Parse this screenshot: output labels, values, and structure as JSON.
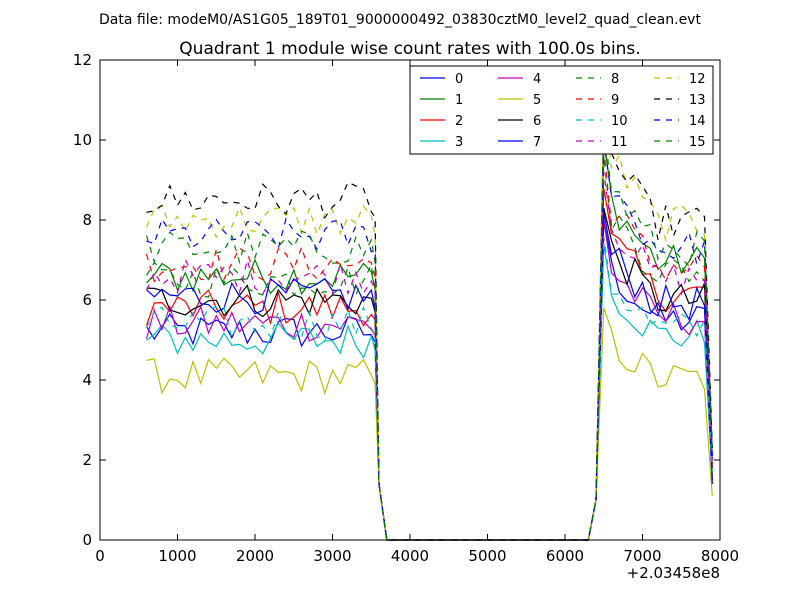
{
  "header": {
    "data_file": "Data file: modeM0/AS1G05_189T01_9000000492_03830cztM0_level2_quad_clean.evt"
  },
  "chart_data": {
    "type": "line",
    "title": "Quadrant 1 module wise count rates with 100.0s bins.",
    "xlabel": "",
    "ylabel": "",
    "xlim": [
      0,
      8000
    ],
    "ylim": [
      0,
      12
    ],
    "x_ticks": [
      0,
      1000,
      2000,
      3000,
      4000,
      5000,
      6000,
      7000,
      8000
    ],
    "y_ticks": [
      0,
      2,
      4,
      6,
      8,
      10,
      12
    ],
    "x_offset_label": "+2.03458e8",
    "grid": false,
    "legend_position": "top-right",
    "legend_columns": 4,
    "segments": {
      "first_start": 600,
      "first_end": 3500,
      "fall_end": 3700,
      "second_start": 6500,
      "second_end": 7850,
      "rise_start": 6300,
      "final_x": 7900,
      "step": 100
    },
    "series": [
      {
        "name": "0",
        "color": "#0000ff",
        "style": "solid",
        "first_mean": 5.2,
        "second_mean": 5.8,
        "peak": 8.0,
        "final": 1.8
      },
      {
        "name": "1",
        "color": "#008000",
        "style": "solid",
        "first_mean": 6.6,
        "second_mean": 7.4,
        "peak": 10.0,
        "final": 2.0
      },
      {
        "name": "2",
        "color": "#ff0000",
        "style": "solid",
        "first_mean": 5.8,
        "second_mean": 6.6,
        "peak": 8.8,
        "final": 1.9
      },
      {
        "name": "3",
        "color": "#00bfbf",
        "style": "solid",
        "first_mean": 5.0,
        "second_mean": 5.4,
        "peak": 7.4,
        "final": 1.6
      },
      {
        "name": "4",
        "color": "#bf00bf",
        "style": "solid",
        "first_mean": 5.4,
        "second_mean": 5.9,
        "peak": 8.0,
        "final": 1.7
      },
      {
        "name": "5",
        "color": "#bfbf00",
        "style": "solid",
        "first_mean": 4.1,
        "second_mean": 4.3,
        "peak": 5.8,
        "final": 1.1
      },
      {
        "name": "6",
        "color": "#000000",
        "style": "solid",
        "first_mean": 6.0,
        "second_mean": 6.6,
        "peak": 8.3,
        "final": 1.5
      },
      {
        "name": "7",
        "color": "#0000ff",
        "style": "solid",
        "first_mean": 6.1,
        "second_mean": 6.5,
        "peak": 8.2,
        "final": 1.4
      },
      {
        "name": "8",
        "color": "#008000",
        "style": "dashed",
        "first_mean": 6.5,
        "second_mean": 7.2,
        "peak": 9.6,
        "final": 2.1
      },
      {
        "name": "9",
        "color": "#ff0000",
        "style": "dashed",
        "first_mean": 6.9,
        "second_mean": 7.3,
        "peak": 9.8,
        "final": 2.0
      },
      {
        "name": "10",
        "color": "#00bfbf",
        "style": "dashed",
        "first_mean": 5.4,
        "second_mean": 5.6,
        "peak": 7.6,
        "final": 1.7
      },
      {
        "name": "11",
        "color": "#bf00bf",
        "style": "dashed",
        "first_mean": 6.6,
        "second_mean": 7.1,
        "peak": 9.2,
        "final": 2.0
      },
      {
        "name": "12",
        "color": "#bfbf00",
        "style": "dashed",
        "first_mean": 8.0,
        "second_mean": 8.7,
        "peak": 11.0,
        "final": 2.2
      },
      {
        "name": "13",
        "color": "#000000",
        "style": "dashed",
        "first_mean": 8.5,
        "second_mean": 9.0,
        "peak": 10.6,
        "final": 2.3
      },
      {
        "name": "14",
        "color": "#0000ff",
        "style": "dashed",
        "first_mean": 7.6,
        "second_mean": 8.1,
        "peak": 10.0,
        "final": 2.1
      },
      {
        "name": "15",
        "color": "#008000",
        "style": "dashed",
        "first_mean": 7.3,
        "second_mean": 7.8,
        "peak": 10.4,
        "final": 2.2
      }
    ]
  }
}
